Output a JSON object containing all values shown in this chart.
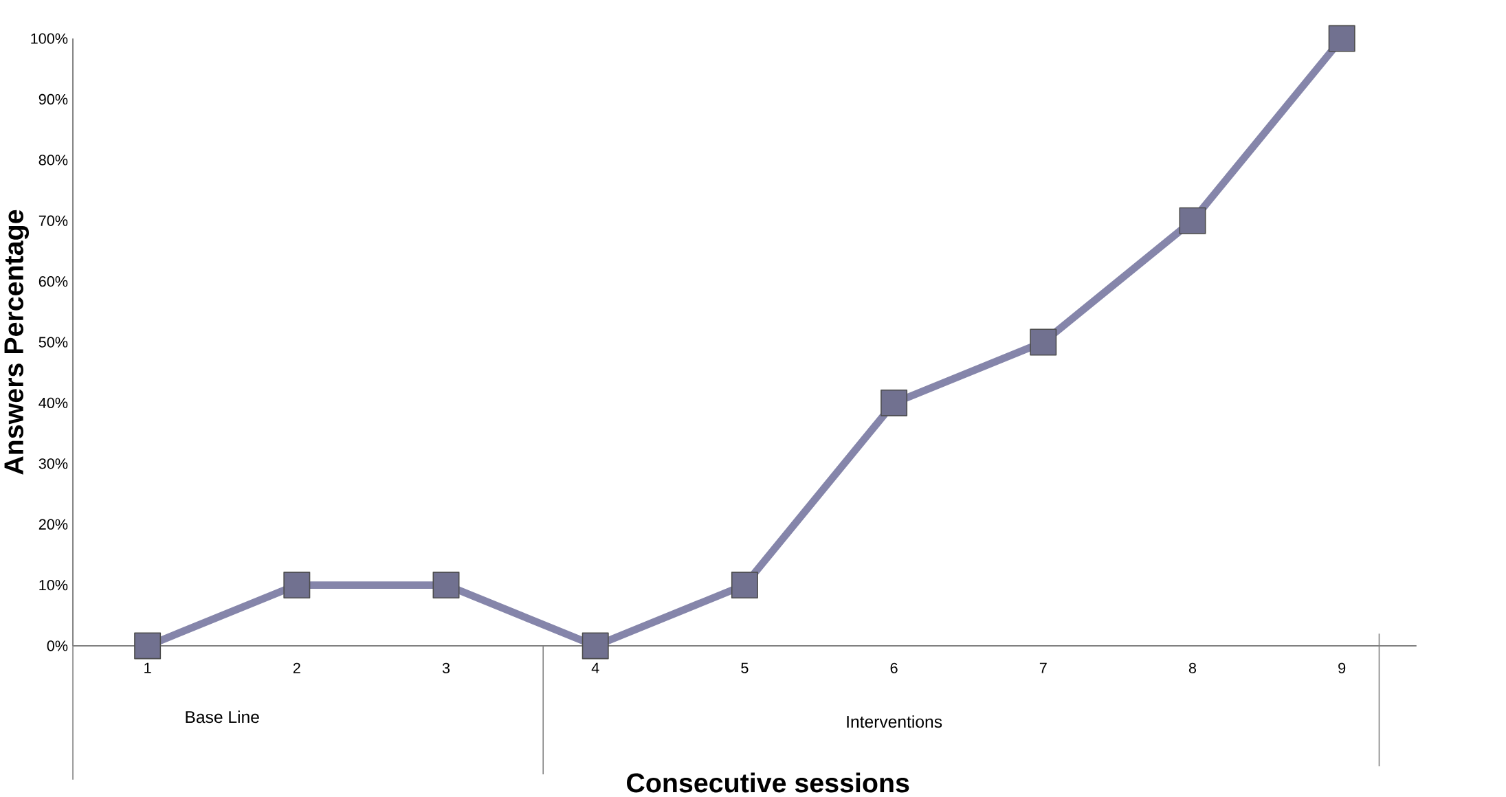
{
  "chart_data": {
    "type": "line",
    "xlabel": "Consecutive sessions",
    "ylabel": "Answers Percentage",
    "categories": [
      "1",
      "2",
      "3",
      "4",
      "5",
      "6",
      "7",
      "8",
      "9"
    ],
    "series": [
      {
        "color": "#8585aa",
        "values": [
          0,
          10,
          10,
          0,
          10,
          40,
          50,
          70,
          100
        ]
      }
    ],
    "ylim": [
      0,
      100
    ],
    "yticks": [
      {
        "value": 0,
        "label": "0%"
      },
      {
        "value": 10,
        "label": "10%"
      },
      {
        "value": 20,
        "label": "20%"
      },
      {
        "value": 30,
        "label": "30%"
      },
      {
        "value": 40,
        "label": "40%"
      },
      {
        "value": 50,
        "label": "50%"
      },
      {
        "value": 60,
        "label": "60%"
      },
      {
        "value": 70,
        "label": "70%"
      },
      {
        "value": 80,
        "label": "80%"
      },
      {
        "value": 90,
        "label": "90%"
      },
      {
        "value": 100,
        "label": "100%"
      }
    ],
    "annotations": [
      "Base Line",
      "Interventions"
    ],
    "marker": "square",
    "line_style": "solid",
    "grid": false
  }
}
